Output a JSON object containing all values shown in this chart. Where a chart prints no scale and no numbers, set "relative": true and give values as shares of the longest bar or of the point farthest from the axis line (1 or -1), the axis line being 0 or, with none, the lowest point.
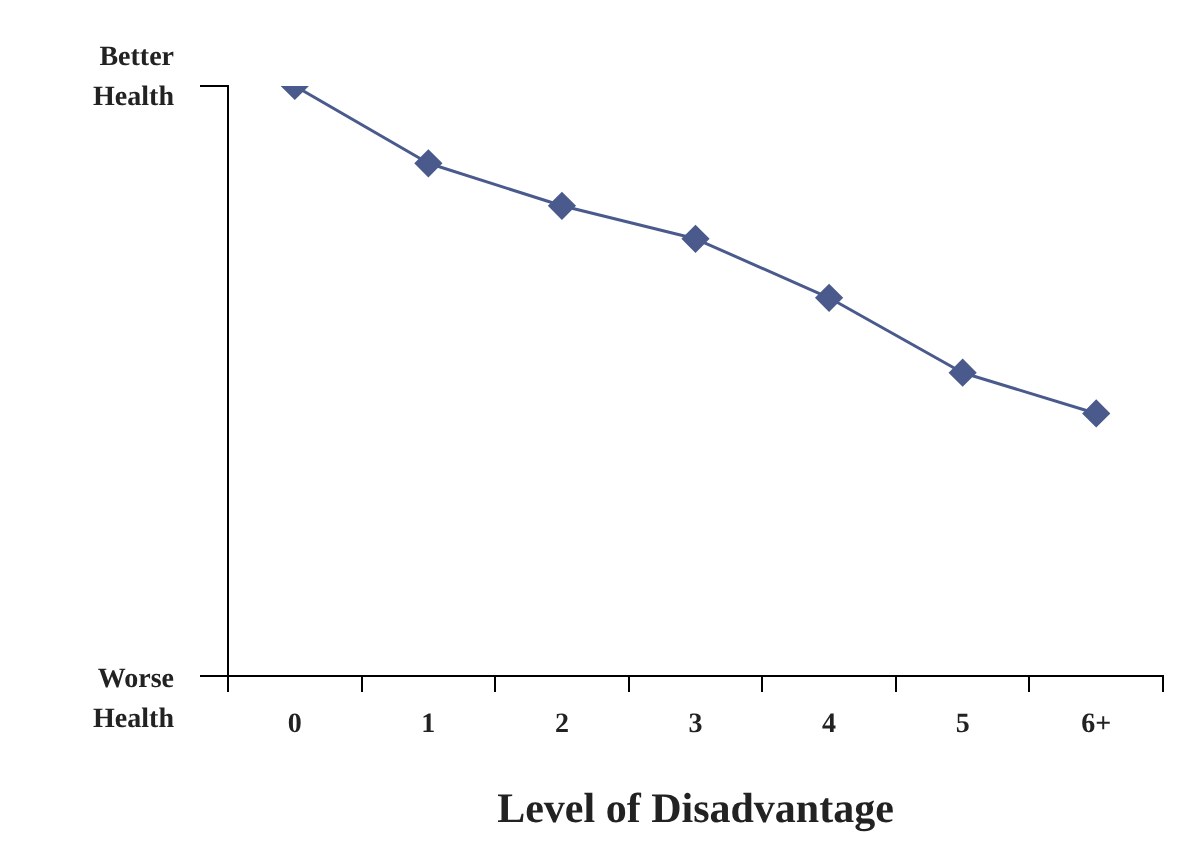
{
  "chart_data": {
    "type": "line",
    "relative": true,
    "xlabel": "Level of Disadvantage",
    "categories": [
      "0",
      "1",
      "2",
      "3",
      "4",
      "5",
      "6+"
    ],
    "series": [
      {
        "color": "#4a5a8c",
        "values": [
          1,
          0.869,
          0.797,
          0.741,
          0.641,
          0.514,
          0.445
        ]
      }
    ],
    "marker": "diamond",
    "line_style": "solid",
    "grid": false,
    "legend": false,
    "annotations": [
      "Better Health",
      "Worse Health"
    ]
  }
}
